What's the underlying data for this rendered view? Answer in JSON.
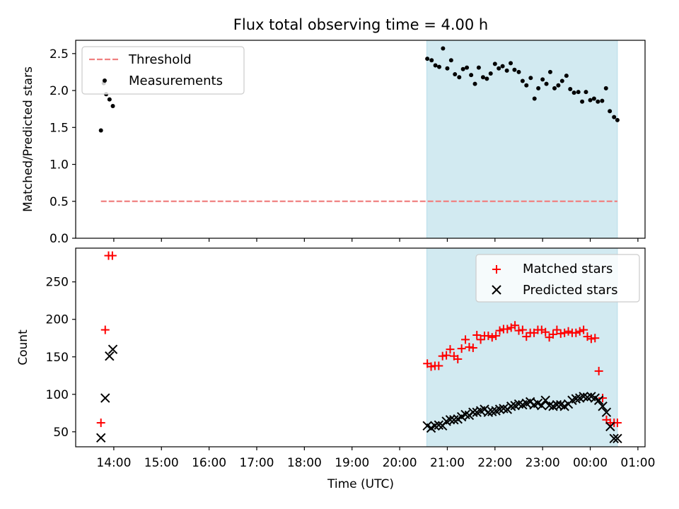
{
  "chart_data": [
    {
      "type": "scatter",
      "title": "Flux total observing time = 4.00 h",
      "xlabel": "",
      "ylabel": "Matched/Predicted stars",
      "x_unit": "hours since 00:00 (UTC, day 1)",
      "xlim": [
        13.2,
        25.15
      ],
      "ylim": [
        0,
        2.68
      ],
      "yticks": [
        0.0,
        0.5,
        1.0,
        1.5,
        2.0,
        2.5
      ],
      "ytick_labels": [
        "0.0",
        "0.5",
        "1.0",
        "1.5",
        "2.0",
        "2.5"
      ],
      "shaded_region": {
        "x_start": 20.57,
        "x_end": 24.57,
        "color": "#add8e6"
      },
      "legend": {
        "position": "top-left",
        "entries": [
          {
            "label": "Threshold",
            "style": "dashed-line",
            "color": "#f08080"
          },
          {
            "label": "Measurements",
            "style": "dot",
            "color": "#000000"
          }
        ]
      },
      "series": [
        {
          "name": "Threshold",
          "kind": "line",
          "color": "#f08080",
          "x": [
            13.73,
            24.57
          ],
          "y": [
            0.5,
            0.5
          ]
        },
        {
          "name": "Measurements",
          "kind": "scatter",
          "color": "#000000",
          "x": [
            13.73,
            13.79,
            13.84,
            13.91,
            13.98,
            20.58,
            20.67,
            20.75,
            20.83,
            20.91,
            21.0,
            21.08,
            21.16,
            21.25,
            21.33,
            21.41,
            21.5,
            21.58,
            21.66,
            21.75,
            21.83,
            21.91,
            22.0,
            22.08,
            22.16,
            22.25,
            22.33,
            22.41,
            22.5,
            22.58,
            22.66,
            22.75,
            22.83,
            22.91,
            23.0,
            23.08,
            23.16,
            23.25,
            23.33,
            23.41,
            23.5,
            23.58,
            23.66,
            23.75,
            23.83,
            23.91,
            24.0,
            24.08,
            24.16,
            24.25,
            24.33,
            24.41,
            24.5,
            24.57
          ],
          "y": [
            1.46,
            2.1,
            1.95,
            1.88,
            1.79,
            2.43,
            2.41,
            2.34,
            2.32,
            2.57,
            2.3,
            2.41,
            2.22,
            2.18,
            2.29,
            2.31,
            2.21,
            2.09,
            2.31,
            2.18,
            2.16,
            2.23,
            2.36,
            2.3,
            2.33,
            2.27,
            2.37,
            2.28,
            2.25,
            2.13,
            2.07,
            2.17,
            1.89,
            2.03,
            2.15,
            2.09,
            2.25,
            2.03,
            2.07,
            2.13,
            2.2,
            2.02,
            1.97,
            1.98,
            1.85,
            1.98,
            1.87,
            1.89,
            1.85,
            1.86,
            2.03,
            1.72,
            1.64,
            1.6
          ]
        }
      ]
    },
    {
      "type": "scatter",
      "title": "",
      "xlabel": "Time (UTC)",
      "ylabel": "Count",
      "x_unit": "hours since 00:00 (UTC, day 1)",
      "xlim": [
        13.2,
        25.15
      ],
      "ylim": [
        30,
        295
      ],
      "yticks": [
        50,
        100,
        150,
        200,
        250
      ],
      "ytick_labels": [
        "50",
        "100",
        "150",
        "200",
        "250"
      ],
      "xticks": [
        14,
        15,
        16,
        17,
        18,
        19,
        20,
        21,
        22,
        23,
        24,
        25
      ],
      "xtick_labels": [
        "14:00",
        "15:00",
        "16:00",
        "17:00",
        "18:00",
        "19:00",
        "20:00",
        "21:00",
        "22:00",
        "23:00",
        "00:00",
        "01:00"
      ],
      "shaded_region": {
        "x_start": 20.57,
        "x_end": 24.57,
        "color": "#add8e6"
      },
      "legend": {
        "position": "top-right",
        "entries": [
          {
            "label": "Matched stars",
            "style": "plus",
            "color": "#ff0000"
          },
          {
            "label": "Predicted stars",
            "style": "x",
            "color": "#000000"
          }
        ]
      },
      "series": [
        {
          "name": "Matched stars",
          "marker": "+",
          "color": "#ff0000",
          "x": [
            13.73,
            13.82,
            13.89,
            13.97,
            20.58,
            20.66,
            20.74,
            20.82,
            20.9,
            20.98,
            21.06,
            21.14,
            21.22,
            21.3,
            21.38,
            21.46,
            21.54,
            21.62,
            21.7,
            21.78,
            21.86,
            21.94,
            22.02,
            22.1,
            22.18,
            22.26,
            22.34,
            22.42,
            22.5,
            22.58,
            22.66,
            22.74,
            22.82,
            22.9,
            22.98,
            23.06,
            23.14,
            23.22,
            23.3,
            23.38,
            23.46,
            23.54,
            23.62,
            23.7,
            23.78,
            23.86,
            23.94,
            24.02,
            24.1,
            24.18,
            24.26,
            24.34,
            24.42,
            24.5,
            24.57
          ],
          "y": [
            62,
            186,
            285,
            285,
            141,
            137,
            138,
            138,
            151,
            152,
            160,
            151,
            147,
            161,
            173,
            163,
            162,
            179,
            173,
            178,
            178,
            176,
            178,
            185,
            187,
            187,
            189,
            192,
            185,
            186,
            177,
            182,
            182,
            186,
            186,
            183,
            176,
            180,
            186,
            181,
            182,
            184,
            182,
            182,
            184,
            186,
            177,
            174,
            175,
            131,
            95,
            66,
            62,
            62,
            62
          ]
        },
        {
          "name": "Predicted stars",
          "marker": "x",
          "color": "#000000",
          "x": [
            13.73,
            13.82,
            13.91,
            13.98,
            20.58,
            20.66,
            20.74,
            20.82,
            20.9,
            20.98,
            21.06,
            21.14,
            21.22,
            21.3,
            21.38,
            21.46,
            21.54,
            21.62,
            21.7,
            21.78,
            21.86,
            21.94,
            22.02,
            22.1,
            22.18,
            22.26,
            22.34,
            22.42,
            22.5,
            22.58,
            22.66,
            22.74,
            22.82,
            22.9,
            22.98,
            23.06,
            23.14,
            23.22,
            23.3,
            23.38,
            23.46,
            23.54,
            23.62,
            23.7,
            23.78,
            23.86,
            23.94,
            24.02,
            24.1,
            24.18,
            24.26,
            24.34,
            24.42,
            24.5,
            24.57
          ],
          "y": [
            42,
            95,
            151,
            160,
            58,
            55,
            58,
            59,
            58,
            64,
            66,
            66,
            67,
            70,
            73,
            72,
            76,
            76,
            78,
            80,
            76,
            77,
            78,
            80,
            81,
            80,
            84,
            85,
            87,
            86,
            88,
            90,
            86,
            88,
            85,
            92,
            85,
            84,
            86,
            86,
            84,
            87,
            92,
            94,
            95,
            97,
            96,
            97,
            95,
            92,
            84,
            76,
            57,
            41,
            41
          ]
        }
      ]
    }
  ]
}
